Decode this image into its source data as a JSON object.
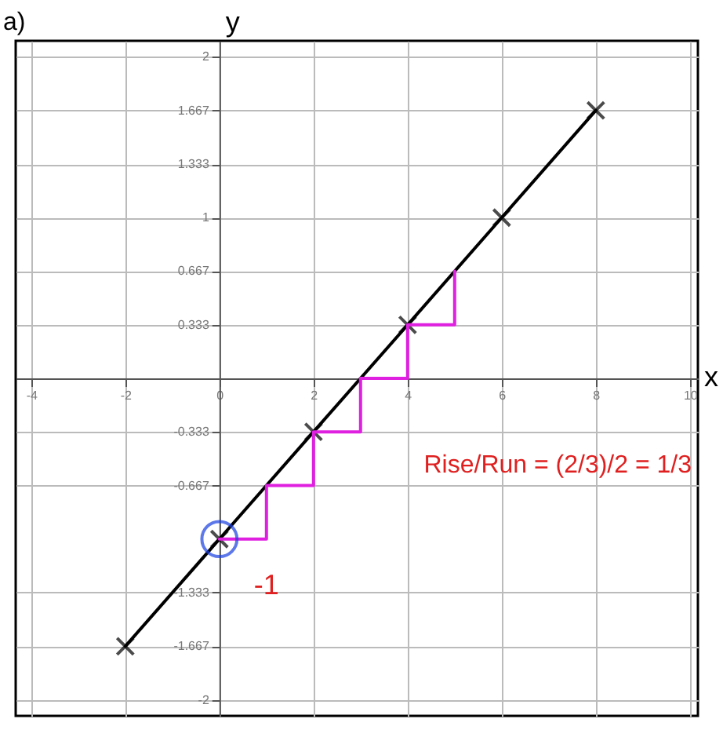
{
  "chart_data": {
    "type": "line",
    "title": "a)",
    "xlabel": "x",
    "ylabel": "y",
    "xlim": [
      -4.33,
      10.17
    ],
    "ylim": [
      -2.1,
      2.1
    ],
    "xticks": [
      -4,
      -2,
      0,
      2,
      4,
      6,
      8,
      10
    ],
    "yticks": [
      -2,
      -1.667,
      -1.333,
      -0.667,
      -0.333,
      0.333,
      0.667,
      1,
      1.333,
      1.667,
      2
    ],
    "grid": true,
    "marker": "cross",
    "series": [
      {
        "x": [
          -2,
          0,
          2,
          4,
          6,
          8
        ],
        "values": [
          -1.667,
          -1,
          -0.333,
          0.333,
          1,
          1.667
        ],
        "color": "#000000"
      },
      {
        "type": "line",
        "marker": "none",
        "x": [
          0,
          1,
          1,
          2,
          2,
          3,
          3,
          4,
          4,
          5,
          5
        ],
        "values": [
          -1,
          -1,
          -0.667,
          -0.667,
          -0.333,
          -0.333,
          0,
          0,
          0.333,
          0.333,
          0.667
        ],
        "color": "#e020e0"
      }
    ],
    "annotations": [
      {
        "text": "-1",
        "x": 0,
        "y": -1
      },
      "Rise/Run = (2/3)/2 = 1/3"
    ]
  }
}
